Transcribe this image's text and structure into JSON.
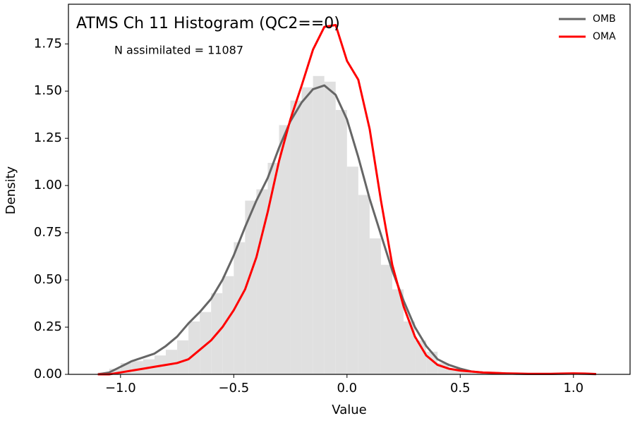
{
  "chart_data": {
    "type": "histogram",
    "title": "ATMS Ch 11 Histogram (QC2==0)",
    "annotation": "N assimilated = 11087",
    "x_label": "Value",
    "y_label": "Density",
    "xlim": [
      -1.23,
      1.25
    ],
    "ylim": [
      0,
      1.96
    ],
    "xticks": [
      {
        "value": -1.0,
        "label": "−1.0"
      },
      {
        "value": -0.5,
        "label": "−0.5"
      },
      {
        "value": 0.0,
        "label": "0.0"
      },
      {
        "value": 0.5,
        "label": "0.5"
      },
      {
        "value": 1.0,
        "label": "1.0"
      }
    ],
    "yticks": [
      {
        "value": 0,
        "label": "0.00"
      },
      {
        "value": 0.25,
        "label": "0.25"
      },
      {
        "value": 0.5,
        "label": "0.50"
      },
      {
        "value": 0.75,
        "label": "0.75"
      },
      {
        "value": 1.0,
        "label": "1.00"
      },
      {
        "value": 1.25,
        "label": "1.25"
      },
      {
        "value": 1.5,
        "label": "1.50"
      },
      {
        "value": 1.75,
        "label": "1.75"
      }
    ],
    "legend": "upper right",
    "histogram": {
      "color": "#e0e0e0",
      "bins": [
        -1.1,
        -1.05,
        -1.0,
        -0.95,
        -0.9,
        -0.85,
        -0.8,
        -0.75,
        -0.7,
        -0.65,
        -0.6,
        -0.55,
        -0.5,
        -0.45,
        -0.4,
        -0.35,
        -0.3,
        -0.25,
        -0.2,
        -0.15,
        -0.1,
        -0.05,
        0.0,
        0.05,
        0.1,
        0.15,
        0.2,
        0.25,
        0.3,
        0.35,
        0.4,
        0.45,
        0.5,
        0.55,
        0.6,
        0.65,
        0.7,
        0.75,
        0.8,
        0.85,
        0.9,
        0.95,
        1.0,
        1.05,
        1.1,
        1.15
      ],
      "counts": [
        0.01,
        0.03,
        0.06,
        0.07,
        0.08,
        0.1,
        0.13,
        0.18,
        0.28,
        0.33,
        0.43,
        0.52,
        0.7,
        0.92,
        0.98,
        1.12,
        1.32,
        1.45,
        1.52,
        1.58,
        1.55,
        1.4,
        1.1,
        0.95,
        0.72,
        0.58,
        0.45,
        0.28,
        0.18,
        0.12,
        0.06,
        0.03,
        0.015,
        0.008,
        0.005,
        0.003,
        0.002,
        0.001,
        0.001,
        0.001,
        0,
        0.002,
        0.001,
        0,
        0
      ]
    },
    "x": [
      -1.1,
      -1.05,
      -1.0,
      -0.95,
      -0.9,
      -0.85,
      -0.8,
      -0.75,
      -0.7,
      -0.65,
      -0.6,
      -0.55,
      -0.5,
      -0.45,
      -0.4,
      -0.35,
      -0.3,
      -0.25,
      -0.2,
      -0.15,
      -0.1,
      -0.05,
      0.0,
      0.05,
      0.1,
      0.15,
      0.2,
      0.25,
      0.3,
      0.35,
      0.4,
      0.45,
      0.5,
      0.55,
      0.6,
      0.65,
      0.7,
      0.75,
      0.8,
      0.85,
      0.9,
      0.95,
      1.0,
      1.05,
      1.1
    ],
    "series": [
      {
        "name": "OMB",
        "color": "#666666",
        "values": [
          0.0,
          0.01,
          0.04,
          0.07,
          0.09,
          0.11,
          0.15,
          0.2,
          0.27,
          0.33,
          0.4,
          0.5,
          0.63,
          0.78,
          0.92,
          1.04,
          1.2,
          1.34,
          1.44,
          1.51,
          1.53,
          1.48,
          1.35,
          1.15,
          0.93,
          0.74,
          0.55,
          0.39,
          0.25,
          0.15,
          0.08,
          0.05,
          0.03,
          0.015,
          0.01,
          0.007,
          0.005,
          0.003,
          0.002,
          0.002,
          0.002,
          0.003,
          0.004,
          0.003,
          0.001
        ]
      },
      {
        "name": "OMA",
        "color": "#ff0000",
        "values": [
          0.0,
          0.0,
          0.01,
          0.02,
          0.03,
          0.04,
          0.05,
          0.06,
          0.08,
          0.13,
          0.18,
          0.25,
          0.34,
          0.45,
          0.62,
          0.86,
          1.13,
          1.35,
          1.53,
          1.72,
          1.84,
          1.85,
          1.66,
          1.56,
          1.3,
          0.92,
          0.58,
          0.36,
          0.2,
          0.1,
          0.05,
          0.03,
          0.02,
          0.015,
          0.01,
          0.008,
          0.005,
          0.004,
          0.003,
          0.003,
          0.003,
          0.004,
          0.005,
          0.004,
          0.002
        ]
      }
    ]
  }
}
